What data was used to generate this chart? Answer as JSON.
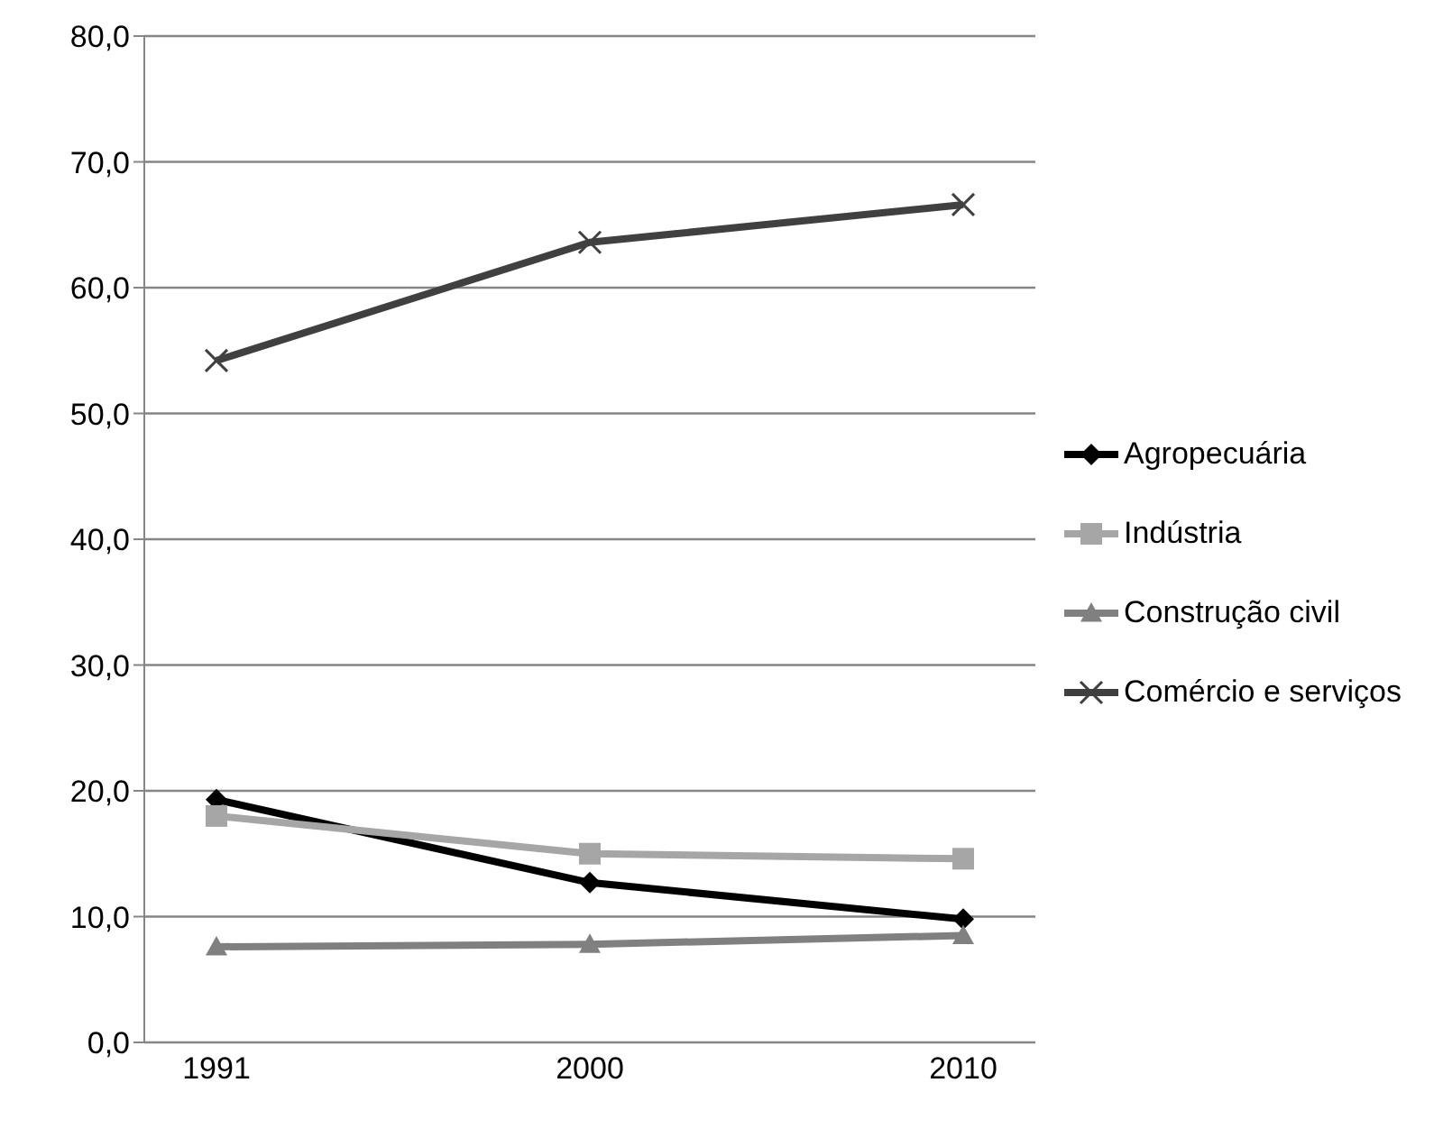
{
  "chart_data": {
    "type": "line",
    "categories": [
      "1991",
      "2000",
      "2010"
    ],
    "series": [
      {
        "name": "Agropecuária",
        "color": "#000000",
        "marker": "diamond",
        "values": [
          19.3,
          12.7,
          9.8
        ]
      },
      {
        "name": "Indústria",
        "color": "#a6a6a6",
        "marker": "square",
        "values": [
          18.0,
          15.0,
          14.6
        ]
      },
      {
        "name": "Construção civil",
        "color": "#808080",
        "marker": "triangle",
        "values": [
          7.6,
          7.8,
          8.5
        ]
      },
      {
        "name": "Comércio e serviços",
        "color": "#404040",
        "marker": "cross",
        "values": [
          54.2,
          63.6,
          66.6
        ]
      }
    ],
    "ylim": [
      0,
      80
    ],
    "yticks": [
      {
        "value": 0,
        "label": "0,0"
      },
      {
        "value": 10,
        "label": "10,0"
      },
      {
        "value": 20,
        "label": "20,0"
      },
      {
        "value": 30,
        "label": "30,0"
      },
      {
        "value": 40,
        "label": "40,0"
      },
      {
        "value": 50,
        "label": "50,0"
      },
      {
        "value": 60,
        "label": "60,0"
      },
      {
        "value": 70,
        "label": "70,0"
      },
      {
        "value": 80,
        "label": "80,0"
      }
    ],
    "grid": "y",
    "legend": "right"
  }
}
